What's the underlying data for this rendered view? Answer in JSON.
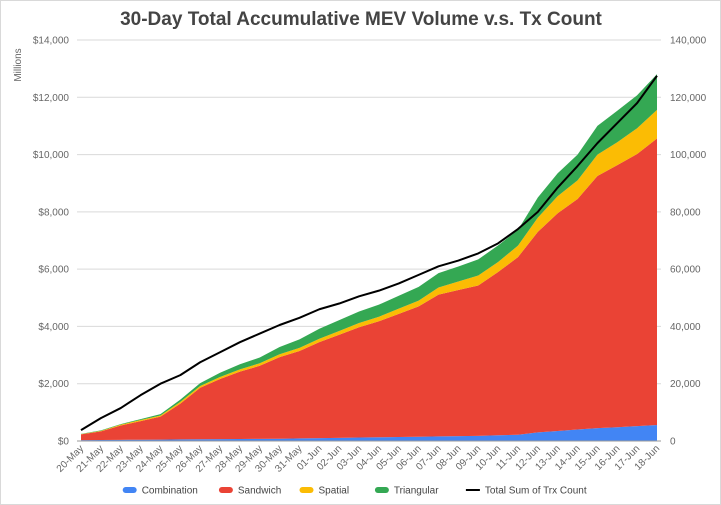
{
  "chart_data": {
    "type": "area",
    "stacked": true,
    "title": "30-Day Total Accumulative MEV Volume v.s. Tx Count",
    "y_unit_label": "Millions",
    "categories": [
      "20-May",
      "21-May",
      "22-May",
      "23-May",
      "24-May",
      "25-May",
      "26-May",
      "27-May",
      "28-May",
      "29-May",
      "30-May",
      "31-May",
      "01-Jun",
      "02-Jun",
      "03-Jun",
      "04-Jun",
      "05-Jun",
      "06-Jun",
      "07-Jun",
      "08-Jun",
      "09-Jun",
      "10-Jun",
      "11-Jun",
      "12-Jun",
      "13-Jun",
      "14-Jun",
      "15-Jun",
      "16-Jun",
      "17-Jun",
      "18-Jun"
    ],
    "ylim_left": [
      0,
      14000
    ],
    "yticks_left": [
      "$0",
      "$2,000",
      "$4,000",
      "$6,000",
      "$8,000",
      "$10,000",
      "$12,000",
      "$14,000"
    ],
    "ylim_right": [
      0,
      140000
    ],
    "yticks_right": [
      "0",
      "20,000",
      "40,000",
      "60,000",
      "80,000",
      "100,000",
      "120,000",
      "140,000"
    ],
    "grid": true,
    "legend_position": "bottom",
    "series": [
      {
        "name": "Combination",
        "color": "#4285f4",
        "axis": "left",
        "kind": "area",
        "values": [
          30,
          35,
          40,
          45,
          50,
          55,
          60,
          65,
          70,
          75,
          80,
          90,
          100,
          110,
          120,
          130,
          140,
          150,
          160,
          170,
          180,
          200,
          220,
          300,
          350,
          400,
          450,
          480,
          520,
          560
        ]
      },
      {
        "name": "Sandwich",
        "color": "#ea4335",
        "axis": "left",
        "kind": "area",
        "values": [
          200,
          300,
          500,
          650,
          800,
          1250,
          1800,
          2100,
          2350,
          2550,
          2850,
          3050,
          3350,
          3600,
          3850,
          4050,
          4300,
          4550,
          4950,
          5100,
          5250,
          5700,
          6200,
          7000,
          7600,
          8050,
          8800,
          9150,
          9500,
          10000
        ]
      },
      {
        "name": "Spatial",
        "color": "#fbbc04",
        "axis": "left",
        "kind": "area",
        "values": [
          10,
          20,
          30,
          40,
          40,
          60,
          60,
          70,
          80,
          90,
          100,
          110,
          120,
          130,
          150,
          160,
          180,
          200,
          250,
          300,
          350,
          350,
          400,
          500,
          600,
          650,
          750,
          800,
          900,
          1000
        ]
      },
      {
        "name": "Triangular",
        "color": "#34a853",
        "axis": "left",
        "kind": "area",
        "values": [
          10,
          15,
          20,
          30,
          50,
          80,
          100,
          150,
          180,
          200,
          250,
          300,
          350,
          380,
          400,
          420,
          450,
          480,
          500,
          520,
          560,
          580,
          550,
          700,
          800,
          900,
          1000,
          1100,
          1150,
          1250
        ]
      },
      {
        "name": "Total Sum of Trx Count",
        "color": "#000000",
        "axis": "right",
        "kind": "line",
        "values": [
          3800,
          8000,
          11500,
          16000,
          20000,
          23000,
          27500,
          31000,
          34500,
          37500,
          40500,
          43000,
          46000,
          48000,
          50500,
          52500,
          55000,
          58000,
          61000,
          63000,
          65500,
          69000,
          74000,
          80000,
          88500,
          96000,
          104000,
          111000,
          118000,
          127500
        ]
      }
    ]
  }
}
